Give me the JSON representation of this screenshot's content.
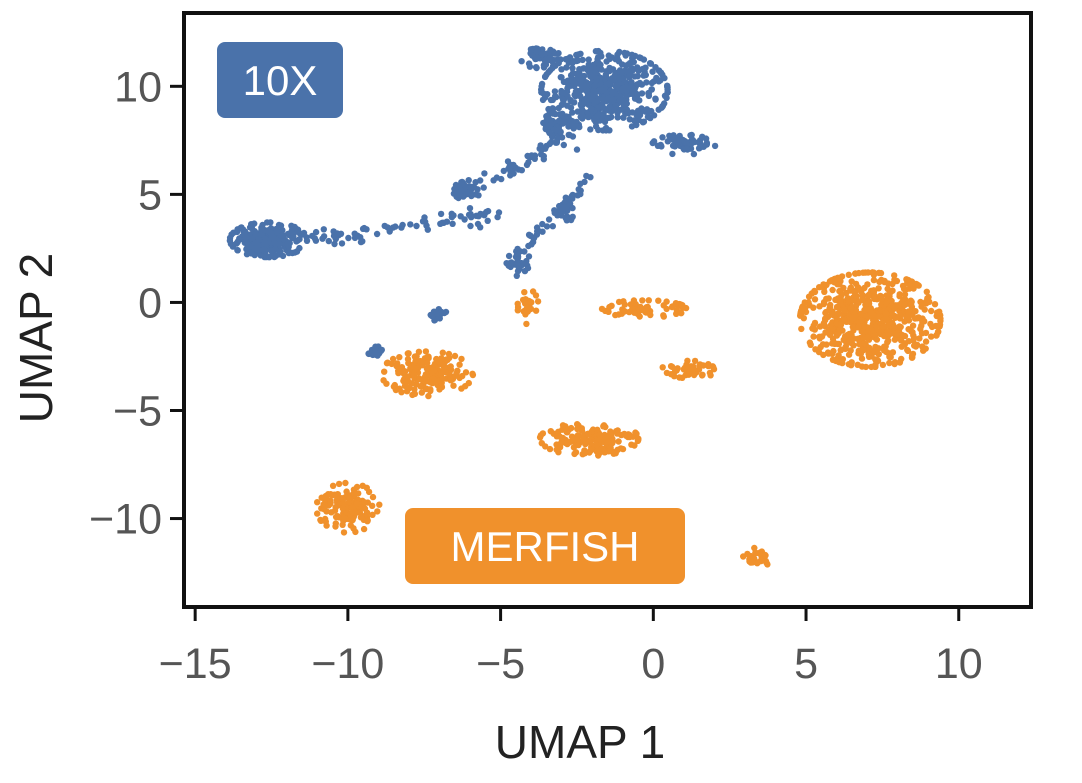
{
  "chart_data": {
    "type": "scatter",
    "xlabel": "UMAP 1",
    "ylabel": "UMAP 2",
    "xlim": [
      -15.3,
      12.3
    ],
    "ylim": [
      -14,
      13.3
    ],
    "x_ticks": [
      -15,
      -10,
      -5,
      0,
      5,
      10
    ],
    "y_ticks": [
      -10,
      -5,
      0,
      5,
      10
    ],
    "x_tick_labels": [
      "−15",
      "−10",
      "−5",
      "0",
      "5",
      "10"
    ],
    "y_tick_labels": [
      "−10",
      "−5",
      "0",
      "5",
      "10"
    ],
    "grid": false,
    "legend": "in-plot labels (top-left, bottom-center)",
    "series": [
      {
        "name": "10X",
        "color": "#4a72aa",
        "clusters": [
          {
            "center": [
              -1.6,
              9.8
            ],
            "spread": [
              1.8,
              1.6
            ],
            "count": 520
          },
          {
            "center": [
              -3.1,
              8.2
            ],
            "spread": [
              0.5,
              0.5
            ],
            "count": 60
          },
          {
            "center": [
              1.0,
              7.3
            ],
            "spread": [
              0.9,
              0.4
            ],
            "count": 60
          },
          {
            "center": [
              -3.7,
              11.3
            ],
            "spread": [
              0.6,
              0.4
            ],
            "count": 50
          },
          {
            "center": [
              -12.6,
              2.9
            ],
            "spread": [
              1.1,
              0.7
            ],
            "count": 240
          },
          {
            "center": [
              -6.1,
              5.2
            ],
            "spread": [
              0.4,
              0.4
            ],
            "count": 50
          },
          {
            "center": [
              -4.4,
              1.8
            ],
            "spread": [
              0.35,
              0.5
            ],
            "count": 35
          },
          {
            "center": [
              -2.9,
              4.2
            ],
            "spread": [
              0.25,
              0.5
            ],
            "count": 25
          },
          {
            "center": [
              -9.1,
              -2.3
            ],
            "spread": [
              0.25,
              0.35
            ],
            "count": 22
          },
          {
            "center": [
              -7.0,
              -0.6
            ],
            "spread": [
              0.25,
              0.25
            ],
            "count": 15
          }
        ]
      },
      {
        "name": "MERFISH",
        "color": "#f0912c",
        "clusters": [
          {
            "center": [
              7.1,
              -0.8
            ],
            "spread": [
              2.0,
              1.9
            ],
            "count": 620
          },
          {
            "center": [
              -7.4,
              -3.3
            ],
            "spread": [
              1.3,
              0.9
            ],
            "count": 170
          },
          {
            "center": [
              -2.1,
              -6.3
            ],
            "spread": [
              1.4,
              0.7
            ],
            "count": 150
          },
          {
            "center": [
              -10.0,
              -9.5
            ],
            "spread": [
              0.9,
              1.0
            ],
            "count": 130
          },
          {
            "center": [
              -0.3,
              -0.3
            ],
            "spread": [
              1.2,
              0.35
            ],
            "count": 70
          },
          {
            "center": [
              1.2,
              -3.1
            ],
            "spread": [
              0.8,
              0.35
            ],
            "count": 45
          },
          {
            "center": [
              -4.1,
              -0.2
            ],
            "spread": [
              0.3,
              0.7
            ],
            "count": 30
          },
          {
            "center": [
              3.4,
              -11.8
            ],
            "spread": [
              0.4,
              0.45
            ],
            "count": 28
          }
        ]
      },
      {
        "name": "bridges",
        "color": "#4a72aa",
        "paths": [
          {
            "from": [
              -11.0,
              2.9
            ],
            "to": [
              -5.0,
              4.2
            ],
            "count": 70
          },
          {
            "from": [
              -6.0,
              5.2
            ],
            "to": [
              -2.8,
              7.5
            ],
            "count": 50
          },
          {
            "from": [
              -4.3,
              2.3
            ],
            "to": [
              -2.0,
              6.0
            ],
            "count": 40
          }
        ]
      }
    ],
    "annotations": [
      {
        "text": "10X",
        "color": "#4a72aa"
      },
      {
        "text": "MERFISH",
        "color": "#f0912c"
      }
    ]
  }
}
